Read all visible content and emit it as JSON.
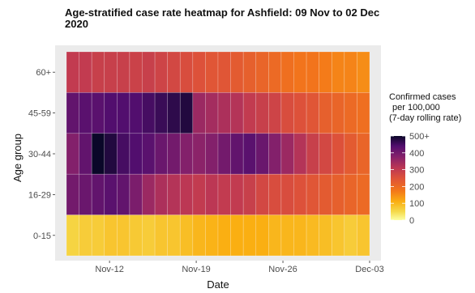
{
  "chart_data": {
    "type": "heatmap",
    "title_lines": [
      "Age-stratified case rate heatmap for Ashfield: 09 Nov to 02 Dec",
      "2020"
    ],
    "xlabel": "Date",
    "ylabel": "Age group",
    "x_tick_labels": [
      "Nov-12",
      "Nov-19",
      "Nov-26",
      "Dec-03"
    ],
    "x_tick_dates": [
      "2020-11-12",
      "2020-11-19",
      "2020-11-26",
      "2020-12-03"
    ],
    "x_range": [
      "2020-11-08",
      "2020-12-03"
    ],
    "dates": [
      "2020-11-09",
      "2020-11-10",
      "2020-11-11",
      "2020-11-12",
      "2020-11-13",
      "2020-11-14",
      "2020-11-15",
      "2020-11-16",
      "2020-11-17",
      "2020-11-18",
      "2020-11-19",
      "2020-11-20",
      "2020-11-21",
      "2020-11-22",
      "2020-11-23",
      "2020-11-24",
      "2020-11-25",
      "2020-11-26",
      "2020-11-27",
      "2020-11-28",
      "2020-11-29",
      "2020-11-30",
      "2020-12-01",
      "2020-12-02"
    ],
    "age_groups": [
      "60+",
      "45-59",
      "30-44",
      "16-29",
      "0-15"
    ],
    "values": {
      "60+": [
        300,
        300,
        290,
        290,
        290,
        285,
        290,
        280,
        270,
        260,
        250,
        240,
        240,
        230,
        220,
        210,
        200,
        190,
        180,
        180,
        170,
        160,
        160,
        150
      ],
      "45-59": [
        420,
        430,
        430,
        440,
        440,
        440,
        450,
        460,
        470,
        480,
        350,
        340,
        330,
        320,
        300,
        290,
        280,
        260,
        250,
        240,
        220,
        210,
        200,
        190
      ],
      "30-44": [
        380,
        420,
        500,
        480,
        450,
        440,
        430,
        410,
        400,
        380,
        370,
        380,
        400,
        420,
        430,
        410,
        380,
        350,
        320,
        290,
        270,
        250,
        230,
        210
      ],
      "16-29": [
        400,
        410,
        420,
        430,
        420,
        390,
        350,
        330,
        320,
        310,
        300,
        310,
        300,
        300,
        290,
        270,
        260,
        260,
        250,
        240,
        230,
        220,
        210,
        200
      ],
      "0-15": [
        60,
        70,
        70,
        80,
        80,
        75,
        70,
        80,
        80,
        90,
        100,
        105,
        110,
        110,
        110,
        110,
        100,
        100,
        100,
        95,
        90,
        80,
        70,
        80
      ]
    },
    "legend": {
      "title_lines": [
        "Confirmed cases",
        "per 100,000",
        "(7-day rolling rate)"
      ],
      "ticks": [
        0,
        100,
        200,
        300,
        400,
        500
      ],
      "tick_labels": [
        "0",
        "100",
        "200",
        "300",
        "400",
        "500+"
      ],
      "range": [
        0,
        500
      ]
    },
    "colorscale": "inferno-reversed",
    "panel_background": "#ebebeb",
    "grid": true
  }
}
